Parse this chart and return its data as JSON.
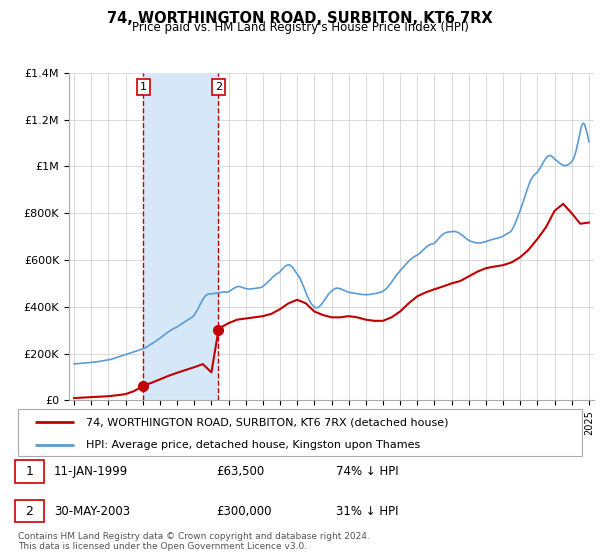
{
  "title": "74, WORTHINGTON ROAD, SURBITON, KT6 7RX",
  "subtitle": "Price paid vs. HM Land Registry's House Price Index (HPI)",
  "legend_line1": "74, WORTHINGTON ROAD, SURBITON, KT6 7RX (detached house)",
  "legend_line2": "HPI: Average price, detached house, Kingston upon Thames",
  "footnote": "Contains HM Land Registry data © Crown copyright and database right 2024.\nThis data is licensed under the Open Government Licence v3.0.",
  "sale1_label": "1",
  "sale1_date": "11-JAN-1999",
  "sale1_price": "£63,500",
  "sale1_hpi": "74% ↓ HPI",
  "sale1_x": 1999.04,
  "sale1_y": 63500,
  "sale2_label": "2",
  "sale2_date": "30-MAY-2003",
  "sale2_price": "£300,000",
  "sale2_hpi": "31% ↓ HPI",
  "sale2_x": 2003.41,
  "sale2_y": 300000,
  "hpi_color": "#5b9bd5",
  "sale_color": "#c00000",
  "shade_color": "#d6e8f7",
  "ylim_min": 0,
  "ylim_max": 1400000,
  "xlim_min": 1994.7,
  "xlim_max": 2025.3,
  "yticks": [
    0,
    200000,
    400000,
    600000,
    800000,
    1000000,
    1200000,
    1400000
  ],
  "ytick_labels": [
    "£0",
    "£200K",
    "£400K",
    "£600K",
    "£800K",
    "£1M",
    "£1.2M",
    "£1.4M"
  ],
  "xticks": [
    1995,
    1996,
    1997,
    1998,
    1999,
    2000,
    2001,
    2002,
    2003,
    2004,
    2005,
    2006,
    2007,
    2008,
    2009,
    2010,
    2011,
    2012,
    2013,
    2014,
    2015,
    2016,
    2017,
    2018,
    2019,
    2020,
    2021,
    2022,
    2023,
    2024,
    2025
  ],
  "hpi_data": [
    [
      1995.0,
      156000
    ],
    [
      1995.08,
      157000
    ],
    [
      1995.17,
      156500
    ],
    [
      1995.25,
      157500
    ],
    [
      1995.33,
      158000
    ],
    [
      1995.42,
      158500
    ],
    [
      1995.5,
      159000
    ],
    [
      1995.58,
      159500
    ],
    [
      1995.67,
      160000
    ],
    [
      1995.75,
      160500
    ],
    [
      1995.83,
      161000
    ],
    [
      1995.92,
      161500
    ],
    [
      1996.0,
      162000
    ],
    [
      1996.08,
      163000
    ],
    [
      1996.17,
      163500
    ],
    [
      1996.25,
      164500
    ],
    [
      1996.33,
      165000
    ],
    [
      1996.42,
      166000
    ],
    [
      1996.5,
      167000
    ],
    [
      1996.58,
      168000
    ],
    [
      1996.67,
      169000
    ],
    [
      1996.75,
      170000
    ],
    [
      1996.83,
      171000
    ],
    [
      1996.92,
      172000
    ],
    [
      1997.0,
      173000
    ],
    [
      1997.08,
      174500
    ],
    [
      1997.17,
      176000
    ],
    [
      1997.25,
      178000
    ],
    [
      1997.33,
      180000
    ],
    [
      1997.42,
      182000
    ],
    [
      1997.5,
      184000
    ],
    [
      1997.58,
      186000
    ],
    [
      1997.67,
      188000
    ],
    [
      1997.75,
      190000
    ],
    [
      1997.83,
      192000
    ],
    [
      1997.92,
      194000
    ],
    [
      1998.0,
      196000
    ],
    [
      1998.08,
      198000
    ],
    [
      1998.17,
      200000
    ],
    [
      1998.25,
      202000
    ],
    [
      1998.33,
      204000
    ],
    [
      1998.42,
      206000
    ],
    [
      1998.5,
      208000
    ],
    [
      1998.58,
      210000
    ],
    [
      1998.67,
      212000
    ],
    [
      1998.75,
      214000
    ],
    [
      1998.83,
      216000
    ],
    [
      1998.92,
      218000
    ],
    [
      1999.0,
      220000
    ],
    [
      1999.08,
      223000
    ],
    [
      1999.17,
      226000
    ],
    [
      1999.25,
      229000
    ],
    [
      1999.33,
      233000
    ],
    [
      1999.42,
      237000
    ],
    [
      1999.5,
      241000
    ],
    [
      1999.58,
      245000
    ],
    [
      1999.67,
      249000
    ],
    [
      1999.75,
      253000
    ],
    [
      1999.83,
      257000
    ],
    [
      1999.92,
      261000
    ],
    [
      2000.0,
      265000
    ],
    [
      2000.08,
      270000
    ],
    [
      2000.17,
      275000
    ],
    [
      2000.25,
      280000
    ],
    [
      2000.33,
      285000
    ],
    [
      2000.42,
      289000
    ],
    [
      2000.5,
      293000
    ],
    [
      2000.58,
      297000
    ],
    [
      2000.67,
      301000
    ],
    [
      2000.75,
      305000
    ],
    [
      2000.83,
      308000
    ],
    [
      2000.92,
      311000
    ],
    [
      2001.0,
      314000
    ],
    [
      2001.08,
      318000
    ],
    [
      2001.17,
      322000
    ],
    [
      2001.25,
      326000
    ],
    [
      2001.33,
      330000
    ],
    [
      2001.42,
      334000
    ],
    [
      2001.5,
      338000
    ],
    [
      2001.58,
      342000
    ],
    [
      2001.67,
      346000
    ],
    [
      2001.75,
      350000
    ],
    [
      2001.83,
      354000
    ],
    [
      2001.92,
      358000
    ],
    [
      2002.0,
      365000
    ],
    [
      2002.08,
      375000
    ],
    [
      2002.17,
      385000
    ],
    [
      2002.25,
      396000
    ],
    [
      2002.33,
      408000
    ],
    [
      2002.42,
      420000
    ],
    [
      2002.5,
      432000
    ],
    [
      2002.58,
      440000
    ],
    [
      2002.67,
      448000
    ],
    [
      2002.75,
      452000
    ],
    [
      2002.83,
      455000
    ],
    [
      2002.92,
      455000
    ],
    [
      2003.0,
      455000
    ],
    [
      2003.08,
      456000
    ],
    [
      2003.17,
      457000
    ],
    [
      2003.25,
      458000
    ],
    [
      2003.33,
      459000
    ],
    [
      2003.42,
      460000
    ],
    [
      2003.5,
      461000
    ],
    [
      2003.58,
      462000
    ],
    [
      2003.67,
      463000
    ],
    [
      2003.75,
      463500
    ],
    [
      2003.83,
      463000
    ],
    [
      2003.92,
      462500
    ],
    [
      2004.0,
      464000
    ],
    [
      2004.08,
      468000
    ],
    [
      2004.17,
      472000
    ],
    [
      2004.25,
      476000
    ],
    [
      2004.33,
      480000
    ],
    [
      2004.42,
      483000
    ],
    [
      2004.5,
      486000
    ],
    [
      2004.58,
      487000
    ],
    [
      2004.67,
      486000
    ],
    [
      2004.75,
      484000
    ],
    [
      2004.83,
      482000
    ],
    [
      2004.92,
      480000
    ],
    [
      2005.0,
      478000
    ],
    [
      2005.08,
      477000
    ],
    [
      2005.17,
      476000
    ],
    [
      2005.25,
      476000
    ],
    [
      2005.33,
      476500
    ],
    [
      2005.42,
      477000
    ],
    [
      2005.5,
      478000
    ],
    [
      2005.58,
      479000
    ],
    [
      2005.67,
      480000
    ],
    [
      2005.75,
      481000
    ],
    [
      2005.83,
      482000
    ],
    [
      2005.92,
      483000
    ],
    [
      2006.0,
      487000
    ],
    [
      2006.08,
      492000
    ],
    [
      2006.17,
      497000
    ],
    [
      2006.25,
      503000
    ],
    [
      2006.33,
      509000
    ],
    [
      2006.42,
      515000
    ],
    [
      2006.5,
      521000
    ],
    [
      2006.58,
      527000
    ],
    [
      2006.67,
      533000
    ],
    [
      2006.75,
      538000
    ],
    [
      2006.83,
      542000
    ],
    [
      2006.92,
      545000
    ],
    [
      2007.0,
      550000
    ],
    [
      2007.08,
      557000
    ],
    [
      2007.17,
      564000
    ],
    [
      2007.25,
      570000
    ],
    [
      2007.33,
      575000
    ],
    [
      2007.42,
      578000
    ],
    [
      2007.5,
      580000
    ],
    [
      2007.58,
      578000
    ],
    [
      2007.67,
      573000
    ],
    [
      2007.75,
      567000
    ],
    [
      2007.83,
      558000
    ],
    [
      2007.92,
      548000
    ],
    [
      2008.0,
      540000
    ],
    [
      2008.08,
      532000
    ],
    [
      2008.17,
      521000
    ],
    [
      2008.25,
      508000
    ],
    [
      2008.33,
      493000
    ],
    [
      2008.42,
      478000
    ],
    [
      2008.5,
      462000
    ],
    [
      2008.58,
      447000
    ],
    [
      2008.67,
      434000
    ],
    [
      2008.75,
      422000
    ],
    [
      2008.83,
      412000
    ],
    [
      2008.92,
      405000
    ],
    [
      2009.0,
      399000
    ],
    [
      2009.08,
      396000
    ],
    [
      2009.17,
      396000
    ],
    [
      2009.25,
      399000
    ],
    [
      2009.33,
      404000
    ],
    [
      2009.42,
      411000
    ],
    [
      2009.5,
      419000
    ],
    [
      2009.58,
      428000
    ],
    [
      2009.67,
      437000
    ],
    [
      2009.75,
      446000
    ],
    [
      2009.83,
      454000
    ],
    [
      2009.92,
      461000
    ],
    [
      2010.0,
      467000
    ],
    [
      2010.08,
      472000
    ],
    [
      2010.17,
      476000
    ],
    [
      2010.25,
      479000
    ],
    [
      2010.33,
      480000
    ],
    [
      2010.42,
      479000
    ],
    [
      2010.5,
      477000
    ],
    [
      2010.58,
      475000
    ],
    [
      2010.67,
      473000
    ],
    [
      2010.75,
      470000
    ],
    [
      2010.83,
      467000
    ],
    [
      2010.92,
      464000
    ],
    [
      2011.0,
      462000
    ],
    [
      2011.08,
      461000
    ],
    [
      2011.17,
      460000
    ],
    [
      2011.25,
      459000
    ],
    [
      2011.33,
      458000
    ],
    [
      2011.42,
      457000
    ],
    [
      2011.5,
      456000
    ],
    [
      2011.58,
      455000
    ],
    [
      2011.67,
      454000
    ],
    [
      2011.75,
      453000
    ],
    [
      2011.83,
      452500
    ],
    [
      2011.92,
      452000
    ],
    [
      2012.0,
      452000
    ],
    [
      2012.08,
      452000
    ],
    [
      2012.17,
      452500
    ],
    [
      2012.25,
      453000
    ],
    [
      2012.33,
      454000
    ],
    [
      2012.42,
      455000
    ],
    [
      2012.5,
      456000
    ],
    [
      2012.58,
      457000
    ],
    [
      2012.67,
      458500
    ],
    [
      2012.75,
      460000
    ],
    [
      2012.83,
      462000
    ],
    [
      2012.92,
      464000
    ],
    [
      2013.0,
      467000
    ],
    [
      2013.08,
      471000
    ],
    [
      2013.17,
      476000
    ],
    [
      2013.25,
      482000
    ],
    [
      2013.33,
      489000
    ],
    [
      2013.42,
      497000
    ],
    [
      2013.5,
      505000
    ],
    [
      2013.58,
      514000
    ],
    [
      2013.67,
      523000
    ],
    [
      2013.75,
      532000
    ],
    [
      2013.83,
      540000
    ],
    [
      2013.92,
      547000
    ],
    [
      2014.0,
      554000
    ],
    [
      2014.08,
      561000
    ],
    [
      2014.17,
      568000
    ],
    [
      2014.25,
      575000
    ],
    [
      2014.33,
      582000
    ],
    [
      2014.42,
      589000
    ],
    [
      2014.5,
      595000
    ],
    [
      2014.58,
      601000
    ],
    [
      2014.67,
      606000
    ],
    [
      2014.75,
      611000
    ],
    [
      2014.83,
      615000
    ],
    [
      2014.92,
      618000
    ],
    [
      2015.0,
      621000
    ],
    [
      2015.08,
      625000
    ],
    [
      2015.17,
      630000
    ],
    [
      2015.25,
      636000
    ],
    [
      2015.33,
      642000
    ],
    [
      2015.42,
      648000
    ],
    [
      2015.5,
      654000
    ],
    [
      2015.58,
      659000
    ],
    [
      2015.67,
      663000
    ],
    [
      2015.75,
      666000
    ],
    [
      2015.83,
      668000
    ],
    [
      2015.92,
      669000
    ],
    [
      2016.0,
      672000
    ],
    [
      2016.08,
      678000
    ],
    [
      2016.17,
      685000
    ],
    [
      2016.25,
      692000
    ],
    [
      2016.33,
      699000
    ],
    [
      2016.42,
      705000
    ],
    [
      2016.5,
      710000
    ],
    [
      2016.58,
      714000
    ],
    [
      2016.67,
      717000
    ],
    [
      2016.75,
      719000
    ],
    [
      2016.83,
      720000
    ],
    [
      2016.92,
      720000
    ],
    [
      2017.0,
      721000
    ],
    [
      2017.08,
      722000
    ],
    [
      2017.17,
      722000
    ],
    [
      2017.25,
      721000
    ],
    [
      2017.33,
      719000
    ],
    [
      2017.42,
      716000
    ],
    [
      2017.5,
      712000
    ],
    [
      2017.58,
      708000
    ],
    [
      2017.67,
      703000
    ],
    [
      2017.75,
      698000
    ],
    [
      2017.83,
      693000
    ],
    [
      2017.92,
      688000
    ],
    [
      2018.0,
      684000
    ],
    [
      2018.08,
      681000
    ],
    [
      2018.17,
      679000
    ],
    [
      2018.25,
      677000
    ],
    [
      2018.33,
      675000
    ],
    [
      2018.42,
      674000
    ],
    [
      2018.5,
      673000
    ],
    [
      2018.58,
      673000
    ],
    [
      2018.67,
      673000
    ],
    [
      2018.75,
      674000
    ],
    [
      2018.83,
      675000
    ],
    [
      2018.92,
      677000
    ],
    [
      2019.0,
      679000
    ],
    [
      2019.08,
      681000
    ],
    [
      2019.17,
      683000
    ],
    [
      2019.25,
      685000
    ],
    [
      2019.33,
      687000
    ],
    [
      2019.42,
      689000
    ],
    [
      2019.5,
      690000
    ],
    [
      2019.58,
      692000
    ],
    [
      2019.67,
      693000
    ],
    [
      2019.75,
      695000
    ],
    [
      2019.83,
      697000
    ],
    [
      2019.92,
      699000
    ],
    [
      2020.0,
      702000
    ],
    [
      2020.08,
      706000
    ],
    [
      2020.17,
      710000
    ],
    [
      2020.25,
      713000
    ],
    [
      2020.33,
      716000
    ],
    [
      2020.42,
      720000
    ],
    [
      2020.5,
      727000
    ],
    [
      2020.58,
      737000
    ],
    [
      2020.67,
      750000
    ],
    [
      2020.75,
      765000
    ],
    [
      2020.83,
      780000
    ],
    [
      2020.92,
      796000
    ],
    [
      2021.0,
      812000
    ],
    [
      2021.08,
      829000
    ],
    [
      2021.17,
      847000
    ],
    [
      2021.25,
      866000
    ],
    [
      2021.33,
      885000
    ],
    [
      2021.42,
      904000
    ],
    [
      2021.5,
      921000
    ],
    [
      2021.58,
      936000
    ],
    [
      2021.67,
      948000
    ],
    [
      2021.75,
      958000
    ],
    [
      2021.83,
      965000
    ],
    [
      2021.92,
      970000
    ],
    [
      2022.0,
      976000
    ],
    [
      2022.08,
      984000
    ],
    [
      2022.17,
      994000
    ],
    [
      2022.25,
      1005000
    ],
    [
      2022.33,
      1016000
    ],
    [
      2022.42,
      1026000
    ],
    [
      2022.5,
      1035000
    ],
    [
      2022.58,
      1042000
    ],
    [
      2022.67,
      1046000
    ],
    [
      2022.75,
      1047000
    ],
    [
      2022.83,
      1044000
    ],
    [
      2022.92,
      1038000
    ],
    [
      2023.0,
      1032000
    ],
    [
      2023.08,
      1027000
    ],
    [
      2023.17,
      1022000
    ],
    [
      2023.25,
      1017000
    ],
    [
      2023.33,
      1012000
    ],
    [
      2023.42,
      1008000
    ],
    [
      2023.5,
      1005000
    ],
    [
      2023.58,
      1004000
    ],
    [
      2023.67,
      1004000
    ],
    [
      2023.75,
      1006000
    ],
    [
      2023.83,
      1009000
    ],
    [
      2023.92,
      1014000
    ],
    [
      2024.0,
      1020000
    ],
    [
      2024.08,
      1030000
    ],
    [
      2024.17,
      1045000
    ],
    [
      2024.25,
      1065000
    ],
    [
      2024.33,
      1090000
    ],
    [
      2024.42,
      1120000
    ],
    [
      2024.5,
      1150000
    ],
    [
      2024.58,
      1175000
    ],
    [
      2024.67,
      1185000
    ],
    [
      2024.75,
      1180000
    ],
    [
      2024.83,
      1160000
    ],
    [
      2024.92,
      1135000
    ],
    [
      2025.0,
      1105000
    ]
  ],
  "sale_data": [
    [
      1995.0,
      10000
    ],
    [
      1995.5,
      12000
    ],
    [
      1996.0,
      14000
    ],
    [
      1996.5,
      16000
    ],
    [
      1997.0,
      18000
    ],
    [
      1997.5,
      22000
    ],
    [
      1998.0,
      27000
    ],
    [
      1998.5,
      40000
    ],
    [
      1999.04,
      63500
    ],
    [
      1999.5,
      75000
    ],
    [
      2000.0,
      90000
    ],
    [
      2000.5,
      105000
    ],
    [
      2001.0,
      118000
    ],
    [
      2001.5,
      130000
    ],
    [
      2002.0,
      142000
    ],
    [
      2002.5,
      155000
    ],
    [
      2003.0,
      120000
    ],
    [
      2003.41,
      300000
    ],
    [
      2003.5,
      310000
    ],
    [
      2004.0,
      330000
    ],
    [
      2004.5,
      345000
    ],
    [
      2005.0,
      350000
    ],
    [
      2005.5,
      355000
    ],
    [
      2006.0,
      360000
    ],
    [
      2006.5,
      370000
    ],
    [
      2007.0,
      390000
    ],
    [
      2007.5,
      415000
    ],
    [
      2008.0,
      430000
    ],
    [
      2008.5,
      415000
    ],
    [
      2009.0,
      380000
    ],
    [
      2009.5,
      365000
    ],
    [
      2010.0,
      355000
    ],
    [
      2010.5,
      355000
    ],
    [
      2011.0,
      360000
    ],
    [
      2011.5,
      355000
    ],
    [
      2012.0,
      345000
    ],
    [
      2012.5,
      340000
    ],
    [
      2013.0,
      340000
    ],
    [
      2013.5,
      355000
    ],
    [
      2014.0,
      380000
    ],
    [
      2014.5,
      415000
    ],
    [
      2015.0,
      445000
    ],
    [
      2015.5,
      462000
    ],
    [
      2016.0,
      475000
    ],
    [
      2016.5,
      487000
    ],
    [
      2017.0,
      500000
    ],
    [
      2017.5,
      510000
    ],
    [
      2018.0,
      530000
    ],
    [
      2018.5,
      550000
    ],
    [
      2019.0,
      565000
    ],
    [
      2019.5,
      572000
    ],
    [
      2020.0,
      578000
    ],
    [
      2020.5,
      590000
    ],
    [
      2021.0,
      612000
    ],
    [
      2021.5,
      645000
    ],
    [
      2022.0,
      690000
    ],
    [
      2022.5,
      740000
    ],
    [
      2023.0,
      810000
    ],
    [
      2023.5,
      840000
    ],
    [
      2024.0,
      800000
    ],
    [
      2024.5,
      755000
    ],
    [
      2025.0,
      760000
    ]
  ]
}
